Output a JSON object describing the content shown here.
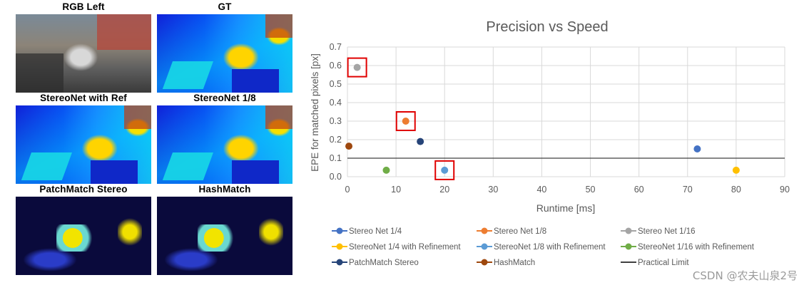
{
  "images": {
    "panels": [
      {
        "label": "RGB Left"
      },
      {
        "label": "GT"
      },
      {
        "label": "StereoNet with Ref"
      },
      {
        "label": "StereoNet 1/8"
      },
      {
        "label": "PatchMatch Stereo"
      },
      {
        "label": "HashMatch"
      }
    ]
  },
  "watermark": "CSDN @农夫山泉2号",
  "chart_data": {
    "type": "scatter",
    "title": "Precision vs Speed",
    "xlabel": "Runtime [ms]",
    "ylabel": "EPE for matched pixels [px]",
    "xlim": [
      0,
      90
    ],
    "ylim": [
      0,
      0.7
    ],
    "xticks": [
      0,
      10,
      20,
      30,
      40,
      50,
      60,
      70,
      80,
      90
    ],
    "yticks": [
      0,
      0.1,
      0.2,
      0.3,
      0.4,
      0.5,
      0.6,
      0.7
    ],
    "grid": "horizontal",
    "legend_position": "bottom",
    "series": [
      {
        "name": "Stereo Net 1/4",
        "color": "#4472c4",
        "x": 72,
        "y": 0.15,
        "highlighted": false
      },
      {
        "name": "Stereo Net 1/8",
        "color": "#ed7d31",
        "x": 12,
        "y": 0.3,
        "highlighted": true
      },
      {
        "name": "Stereo Net 1/16",
        "color": "#a5a5a5",
        "x": 2,
        "y": 0.59,
        "highlighted": true
      },
      {
        "name": "StereoNet 1/4 with Refinement",
        "color": "#ffc000",
        "x": 80,
        "y": 0.035,
        "highlighted": false
      },
      {
        "name": "StereoNet 1/8 with Refinement",
        "color": "#5b9bd5",
        "x": 20,
        "y": 0.035,
        "highlighted": true
      },
      {
        "name": "StereoNet 1/16 with Refinement",
        "color": "#70ad47",
        "x": 8,
        "y": 0.035,
        "highlighted": false
      },
      {
        "name": "PatchMatch Stereo",
        "color": "#264478",
        "x": 15,
        "y": 0.19,
        "highlighted": false
      },
      {
        "name": "HashMatch",
        "color": "#9e480e",
        "x": 0.3,
        "y": 0.165,
        "highlighted": false
      }
    ],
    "reference_line": {
      "name": "Practical Limit",
      "y": 0.1,
      "color": "#404040"
    },
    "highlight_color": "#e00000"
  }
}
